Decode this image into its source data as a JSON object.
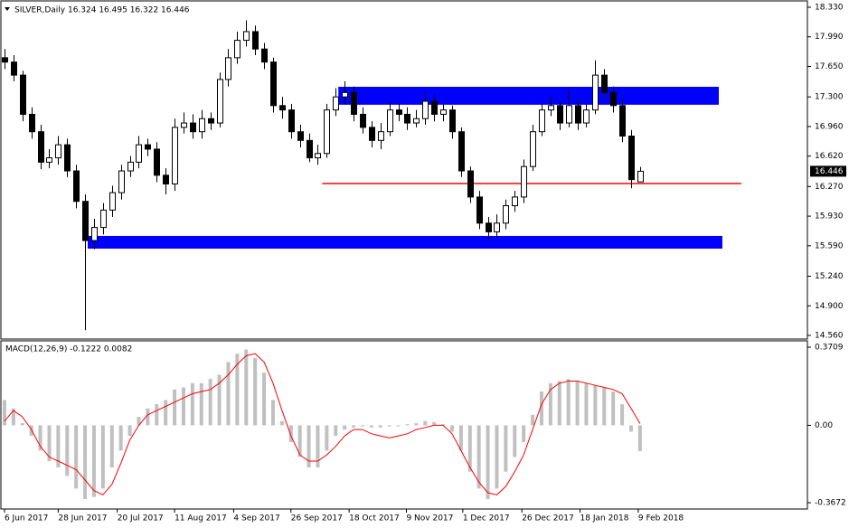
{
  "chart_data": [
    {
      "type": "candlestick",
      "title": "SILVER,Daily  16.324 16.495 16.322 16.446",
      "xlim": [
        -0.3,
        89.7
      ],
      "ylim": [
        14.56,
        18.33
      ],
      "yticks": [
        {
          "value": 18.33,
          "label": "18.330"
        },
        {
          "value": 17.99,
          "label": "17.990"
        },
        {
          "value": 17.65,
          "label": "17.650"
        },
        {
          "value": 17.3,
          "label": "17.300"
        },
        {
          "value": 16.96,
          "label": "16.960"
        },
        {
          "value": 16.62,
          "label": "16.620"
        },
        {
          "value": 16.27,
          "label": "16.270"
        },
        {
          "value": 15.93,
          "label": "15.930"
        },
        {
          "value": 15.59,
          "label": "15.590"
        },
        {
          "value": 15.24,
          "label": "15.240"
        },
        {
          "value": 14.9,
          "label": "14.900"
        },
        {
          "value": 14.56,
          "label": "14.560"
        }
      ],
      "current_price": 16.446,
      "zones": [
        {
          "start": 37.3,
          "end": 79.8,
          "top": 17.416,
          "bottom": 17.21,
          "color": "#0000ff"
        },
        {
          "start": 9.3,
          "end": 80.2,
          "top": 15.703,
          "bottom": 15.557,
          "color": "#0000ff"
        }
      ],
      "level": {
        "value": 16.305,
        "start": 35.5,
        "end": 82.3,
        "color": "#ff0000"
      },
      "candles": [
        [
          17.75,
          17.85,
          17.62,
          17.7
        ],
        [
          17.7,
          17.78,
          17.48,
          17.55
        ],
        [
          17.55,
          17.6,
          17.02,
          17.1
        ],
        [
          17.1,
          17.18,
          16.82,
          16.9
        ],
        [
          16.9,
          16.98,
          16.47,
          16.55
        ],
        [
          16.55,
          16.7,
          16.48,
          16.6
        ],
        [
          16.6,
          16.85,
          16.52,
          16.75
        ],
        [
          16.75,
          16.82,
          16.38,
          16.45
        ],
        [
          16.45,
          16.52,
          16.02,
          16.1
        ],
        [
          16.1,
          16.18,
          14.62,
          15.65
        ],
        [
          15.65,
          15.9,
          15.55,
          15.8
        ],
        [
          15.8,
          16.08,
          15.72,
          16.0
        ],
        [
          16.0,
          16.28,
          15.92,
          16.2
        ],
        [
          16.2,
          16.52,
          16.12,
          16.45
        ],
        [
          16.45,
          16.62,
          16.38,
          16.55
        ],
        [
          16.55,
          16.85,
          16.48,
          16.75
        ],
        [
          16.75,
          16.82,
          16.62,
          16.7
        ],
        [
          16.7,
          16.78,
          16.32,
          16.4
        ],
        [
          16.4,
          16.48,
          16.18,
          16.3
        ],
        [
          16.3,
          17.05,
          16.22,
          16.95
        ],
        [
          16.95,
          17.12,
          16.88,
          17.0
        ],
        [
          17.0,
          17.1,
          16.82,
          16.9
        ],
        [
          16.9,
          17.15,
          16.82,
          17.05
        ],
        [
          17.05,
          17.12,
          16.92,
          17.0
        ],
        [
          17.0,
          17.58,
          16.95,
          17.5
        ],
        [
          17.5,
          17.85,
          17.42,
          17.75
        ],
        [
          17.75,
          18.05,
          17.68,
          17.95
        ],
        [
          17.95,
          18.18,
          17.88,
          18.05
        ],
        [
          18.05,
          18.12,
          17.78,
          17.85
        ],
        [
          17.85,
          17.92,
          17.62,
          17.7
        ],
        [
          17.7,
          17.75,
          17.12,
          17.2
        ],
        [
          17.2,
          17.3,
          17.05,
          17.15
        ],
        [
          17.15,
          17.22,
          16.82,
          16.9
        ],
        [
          16.9,
          16.98,
          16.72,
          16.8
        ],
        [
          16.8,
          16.88,
          16.55,
          16.6
        ],
        [
          16.6,
          16.75,
          16.52,
          16.65
        ],
        [
          16.65,
          17.22,
          16.6,
          17.15
        ],
        [
          17.15,
          17.4,
          17.08,
          17.3
        ],
        [
          17.3,
          17.48,
          17.22,
          17.35
        ],
        [
          17.35,
          17.42,
          17.02,
          17.1
        ],
        [
          17.1,
          17.18,
          16.88,
          16.95
        ],
        [
          16.95,
          17.02,
          16.72,
          16.8
        ],
        [
          16.8,
          17.0,
          16.7,
          16.9
        ],
        [
          16.9,
          17.25,
          16.85,
          17.15
        ],
        [
          17.15,
          17.22,
          17.02,
          17.1
        ],
        [
          17.1,
          17.18,
          16.92,
          17.0
        ],
        [
          17.0,
          17.15,
          16.95,
          17.05
        ],
        [
          17.05,
          17.35,
          16.98,
          17.25
        ],
        [
          17.25,
          17.32,
          17.02,
          17.1
        ],
        [
          17.1,
          17.22,
          17.02,
          17.15
        ],
        [
          17.15,
          17.2,
          16.82,
          16.9
        ],
        [
          16.9,
          16.95,
          16.38,
          16.45
        ],
        [
          16.45,
          16.5,
          16.08,
          16.15
        ],
        [
          16.15,
          16.22,
          15.78,
          15.85
        ],
        [
          15.85,
          15.92,
          15.66,
          15.75
        ],
        [
          15.75,
          15.95,
          15.68,
          15.85
        ],
        [
          15.85,
          16.12,
          15.78,
          16.05
        ],
        [
          16.05,
          16.22,
          15.98,
          16.15
        ],
        [
          16.15,
          16.58,
          16.08,
          16.5
        ],
        [
          16.5,
          16.98,
          16.45,
          16.9
        ],
        [
          16.9,
          17.22,
          16.85,
          17.15
        ],
        [
          17.15,
          17.3,
          17.08,
          17.2
        ],
        [
          17.2,
          17.25,
          16.92,
          17.0
        ],
        [
          17.0,
          17.38,
          16.95,
          17.2
        ],
        [
          17.2,
          17.28,
          16.92,
          17.0
        ],
        [
          17.0,
          17.22,
          16.95,
          17.15
        ],
        [
          17.15,
          17.72,
          17.1,
          17.55
        ],
        [
          17.55,
          17.62,
          17.28,
          17.35
        ],
        [
          17.35,
          17.42,
          17.12,
          17.2
        ],
        [
          17.2,
          17.28,
          16.78,
          16.85
        ],
        [
          16.85,
          16.92,
          16.25,
          16.35
        ],
        [
          16.324,
          16.495,
          16.322,
          16.446
        ]
      ]
    },
    {
      "type": "macd",
      "title": "MACD(12,26,9) -0.1222 0.0082",
      "xlim": [
        -0.3,
        89.7
      ],
      "ylim": [
        -0.3672,
        0.3709
      ],
      "yticks": [
        0.3709,
        {
          "value": 0,
          "label": "0.00"
        },
        -0.3672
      ],
      "xticks": [
        {
          "value": 0,
          "label": "6 Jun 2017"
        },
        {
          "value": 6,
          "label": "28 Jun 2017"
        },
        {
          "value": 12.6,
          "label": "20 Jul 2017"
        },
        {
          "value": 19,
          "label": "11 Aug 2017"
        },
        {
          "value": 25.6,
          "label": "4 Sep 2017"
        },
        {
          "value": 32,
          "label": "26 Sep 2017"
        },
        {
          "value": 38.5,
          "label": "18 Oct 2017"
        },
        {
          "value": 44.9,
          "label": "9 Nov 2017"
        },
        {
          "value": 51.2,
          "label": "1 Dec 2017"
        },
        {
          "value": 57.8,
          "label": "26 Dec 2017"
        },
        {
          "value": 64.3,
          "label": "18 Jan 2018"
        },
        {
          "value": 70.8,
          "label": "9 Feb 2018"
        }
      ],
      "series": [
        {
          "name": "MACD",
          "color": "#c0c0c0",
          "values": [
            0.12,
            0.08,
            0.01,
            -0.05,
            -0.12,
            -0.17,
            -0.2,
            -0.24,
            -0.3,
            -0.35,
            -0.34,
            -0.3,
            -0.2,
            -0.12,
            -0.05,
            0.04,
            0.08,
            0.1,
            0.12,
            0.17,
            0.18,
            0.2,
            0.2,
            0.22,
            0.24,
            0.3,
            0.34,
            0.36,
            0.32,
            0.25,
            0.12,
            0.02,
            -0.08,
            -0.15,
            -0.2,
            -0.2,
            -0.12,
            -0.05,
            -0.02,
            -0.01,
            -0.005,
            -0.01,
            -0.01,
            -0.005,
            -0.005,
            0.005,
            0.01,
            0.02,
            0.015,
            0.005,
            -0.03,
            -0.12,
            -0.22,
            -0.3,
            -0.35,
            -0.3,
            -0.22,
            -0.15,
            -0.08,
            0.05,
            0.16,
            0.2,
            0.21,
            0.22,
            0.21,
            0.2,
            0.19,
            0.18,
            0.16,
            0.1,
            -0.03,
            -0.1222
          ]
        },
        {
          "name": "Signal",
          "color": "#ff0000",
          "values": [
            0.02,
            0.07,
            0.04,
            -0.02,
            -0.1,
            -0.15,
            -0.17,
            -0.19,
            -0.21,
            -0.26,
            -0.31,
            -0.33,
            -0.28,
            -0.18,
            -0.07,
            0.0,
            0.05,
            0.07,
            0.09,
            0.11,
            0.13,
            0.15,
            0.16,
            0.17,
            0.2,
            0.24,
            0.29,
            0.33,
            0.34,
            0.3,
            0.2,
            0.07,
            -0.05,
            -0.14,
            -0.17,
            -0.17,
            -0.14,
            -0.1,
            -0.05,
            -0.02,
            -0.02,
            -0.04,
            -0.05,
            -0.06,
            -0.05,
            -0.04,
            -0.02,
            -0.01,
            0.0,
            0.0,
            -0.04,
            -0.12,
            -0.2,
            -0.27,
            -0.32,
            -0.33,
            -0.29,
            -0.22,
            -0.14,
            -0.02,
            0.1,
            0.17,
            0.2,
            0.21,
            0.21,
            0.2,
            0.19,
            0.18,
            0.17,
            0.15,
            0.08,
            0.0082
          ]
        }
      ]
    }
  ]
}
